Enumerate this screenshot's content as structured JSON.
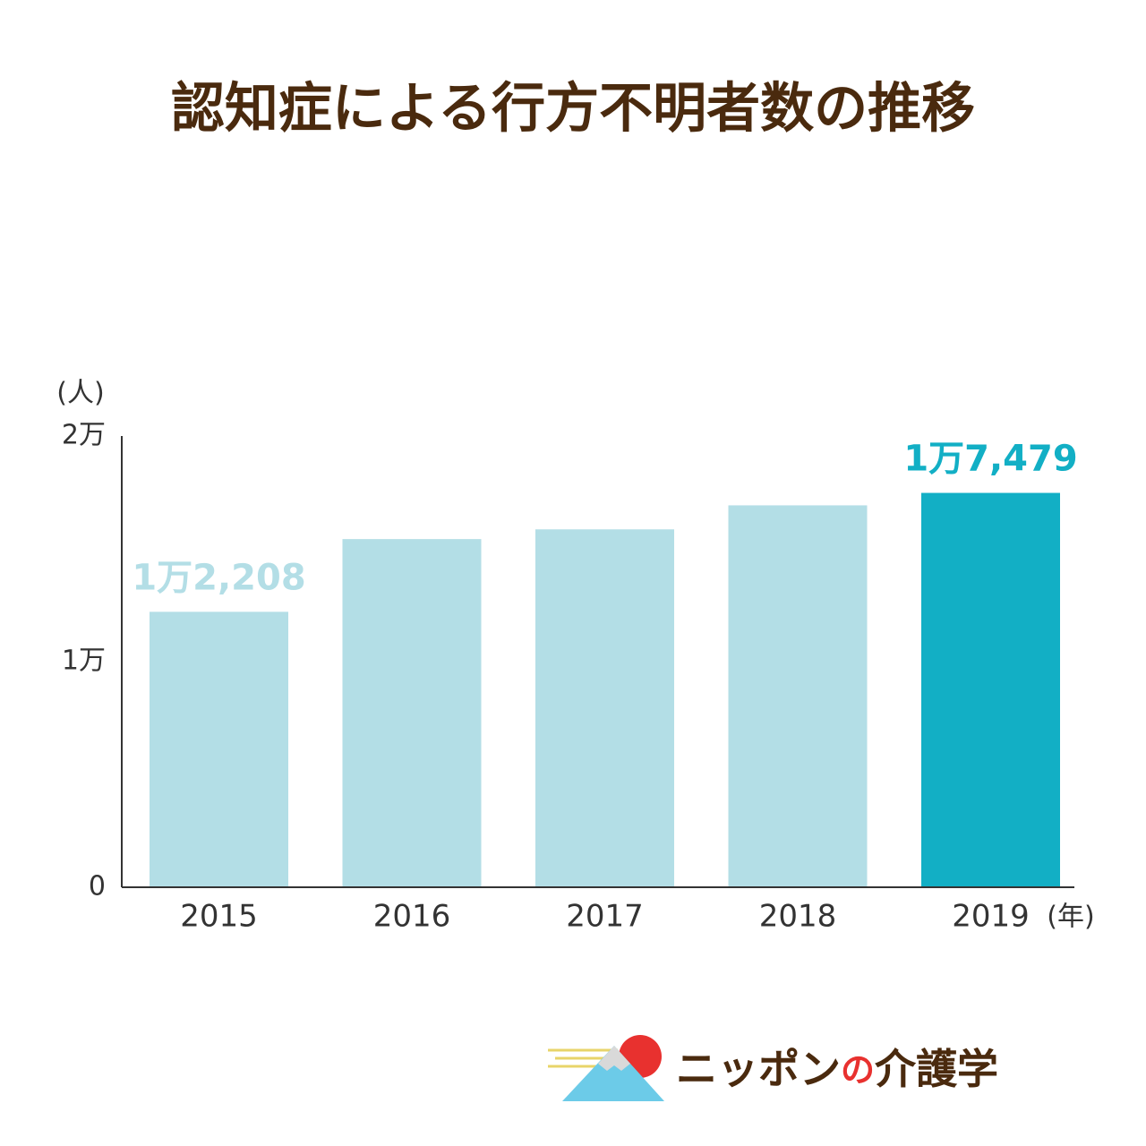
{
  "chart_data": {
    "type": "bar",
    "title": "認知症による行方不明者数の推移",
    "y_unit": "(人)",
    "x_unit": "(年)",
    "categories": [
      "2015",
      "2016",
      "2017",
      "2018",
      "2019"
    ],
    "values": [
      12208,
      15432,
      15863,
      16927,
      17479
    ],
    "value_labels": [
      "1万2,208",
      null,
      null,
      null,
      "1万7,479"
    ],
    "colors": [
      "#b3dee6",
      "#b3dee6",
      "#b3dee6",
      "#b3dee6",
      "#12afc5"
    ],
    "ylim": [
      0,
      20000
    ],
    "yticks": [
      0,
      {
        "value": 10000,
        "label": "1万"
      },
      {
        "value": 20000,
        "label": "2万"
      }
    ],
    "grid": false
  },
  "logo": {
    "parts": [
      "ニッポン",
      "の",
      "介護学"
    ]
  }
}
